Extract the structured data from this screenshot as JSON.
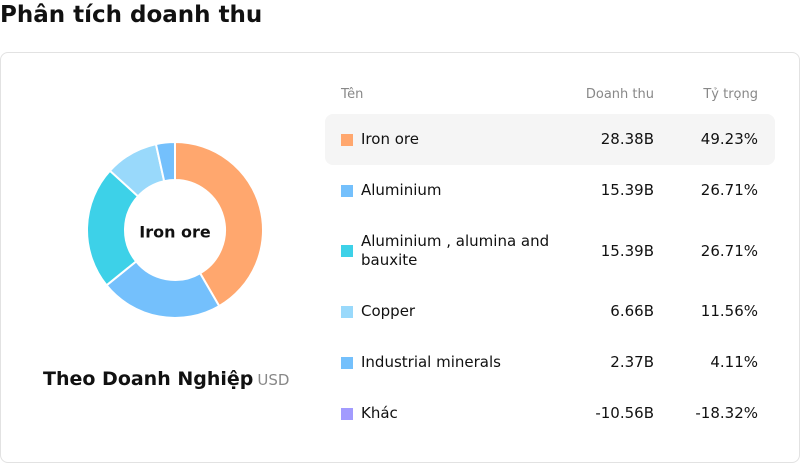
{
  "header": {
    "title": "Phân tích doanh thu"
  },
  "chart_data": {
    "type": "pie",
    "donut": true,
    "center_label": "Iron ore",
    "title": "Theo Doanh Nghiệp",
    "unit": "USD",
    "columns": [
      "Tên",
      "Doanh thu",
      "Tỷ trọng"
    ],
    "categories": [
      "Iron ore",
      "Aluminium",
      "Aluminium , alumina and bauxite",
      "Copper",
      "Industrial minerals",
      "Khác"
    ],
    "colors": [
      "#ffa76e",
      "#74c0fc",
      "#3dd1e8",
      "#99d9fb",
      "#74c0fc",
      "#a29bfe"
    ],
    "values": [
      28.38,
      15.39,
      15.39,
      6.66,
      2.37,
      -10.56
    ],
    "value_labels": [
      "28.38B",
      "15.39B",
      "15.39B",
      "6.66B",
      "2.37B",
      "-10.56B"
    ],
    "shares": [
      49.23,
      26.71,
      26.71,
      11.56,
      4.11,
      -18.32
    ],
    "share_labels": [
      "49.23%",
      "26.71%",
      "26.71%",
      "11.56%",
      "4.11%",
      "-18.32%"
    ],
    "highlight": 0
  }
}
